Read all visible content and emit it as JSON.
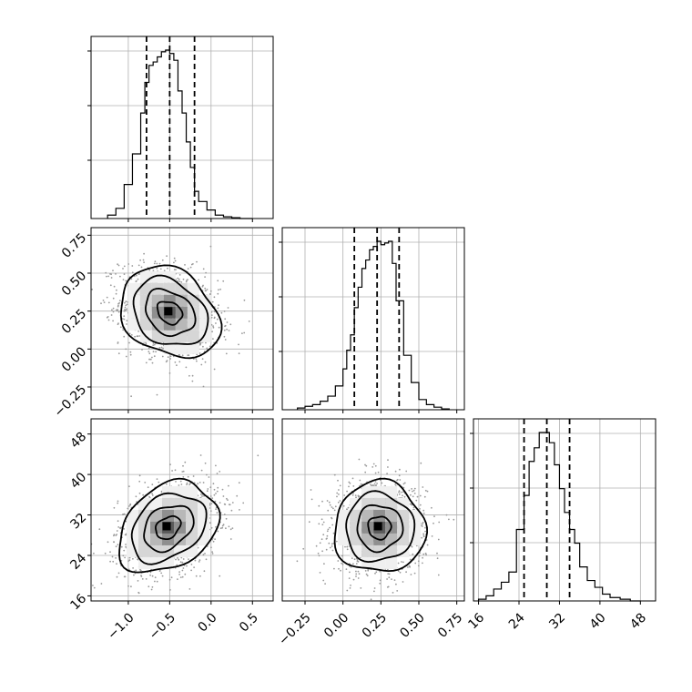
{
  "chart_data": {
    "type": "corner",
    "parameters": [
      {
        "ticks": [
          -1.0,
          -0.5,
          0.0,
          0.5
        ],
        "tick_labels": [
          "−1.0",
          "−0.5",
          "0.0",
          "0.5"
        ],
        "range": [
          -1.45,
          0.75
        ],
        "quantiles": [
          -0.78,
          -0.5,
          -0.2
        ],
        "median": -0.5,
        "sigma": 0.3
      },
      {
        "ticks": [
          -0.25,
          0.0,
          0.25,
          0.5,
          0.75
        ],
        "tick_labels": [
          "−0.25",
          "0.00",
          "0.25",
          "0.50",
          "0.75"
        ],
        "range": [
          -0.4,
          0.8
        ],
        "quantiles": [
          0.075,
          0.225,
          0.37
        ],
        "median": 0.225,
        "sigma": 0.15
      },
      {
        "ticks": [
          16,
          24,
          32,
          40,
          48
        ],
        "tick_labels": [
          "16",
          "24",
          "32",
          "40",
          "48"
        ],
        "range": [
          15,
          51
        ],
        "quantiles": [
          25,
          29.5,
          34
        ],
        "median": 29.5,
        "sigma": 4.5
      }
    ],
    "histograms": [
      {
        "param": 0,
        "edges": [
          -1.25,
          -1.15,
          -1.05,
          -0.95,
          -0.85,
          -0.8,
          -0.75,
          -0.7,
          -0.65,
          -0.6,
          -0.55,
          -0.5,
          -0.45,
          -0.4,
          -0.35,
          -0.3,
          -0.25,
          -0.2,
          -0.15,
          -0.05,
          0.05,
          0.15,
          0.25,
          0.35,
          0.5
        ],
        "counts": [
          0.02,
          0.06,
          0.2,
          0.38,
          0.62,
          0.8,
          0.9,
          0.92,
          0.95,
          0.98,
          0.99,
          0.97,
          0.93,
          0.75,
          0.62,
          0.45,
          0.3,
          0.16,
          0.1,
          0.05,
          0.02,
          0.01,
          0.005,
          0.0
        ]
      },
      {
        "param": 1,
        "edges": [
          -0.3,
          -0.25,
          -0.2,
          -0.15,
          -0.1,
          -0.05,
          0.0,
          0.025,
          0.05,
          0.075,
          0.1,
          0.125,
          0.15,
          0.175,
          0.2,
          0.225,
          0.25,
          0.275,
          0.3,
          0.325,
          0.35,
          0.4,
          0.45,
          0.5,
          0.55,
          0.6,
          0.65,
          0.7
        ],
        "counts": [
          0.01,
          0.02,
          0.03,
          0.05,
          0.08,
          0.14,
          0.24,
          0.35,
          0.44,
          0.6,
          0.72,
          0.83,
          0.88,
          0.94,
          0.96,
          0.99,
          0.97,
          0.98,
          0.99,
          0.86,
          0.64,
          0.32,
          0.16,
          0.06,
          0.03,
          0.015,
          0.005
        ]
      },
      {
        "param": 2,
        "edges": [
          16,
          17.5,
          19,
          20.5,
          22,
          23.5,
          25,
          26,
          27,
          28,
          29,
          30,
          31,
          32,
          33,
          34,
          35,
          36,
          37.5,
          39,
          40.5,
          42,
          44,
          46,
          48
        ],
        "counts": [
          0.01,
          0.03,
          0.07,
          0.11,
          0.17,
          0.42,
          0.62,
          0.82,
          0.9,
          0.99,
          0.99,
          0.93,
          0.8,
          0.66,
          0.52,
          0.42,
          0.34,
          0.2,
          0.12,
          0.08,
          0.04,
          0.02,
          0.01,
          0.0
        ]
      }
    ],
    "panels_2d": [
      {
        "x": 0,
        "y": 1,
        "center": [
          -0.5,
          0.24
        ],
        "correlation": -0.25
      },
      {
        "x": 0,
        "y": 2,
        "center": [
          -0.52,
          29.5
        ],
        "correlation": 0.3
      },
      {
        "x": 1,
        "y": 2,
        "center": [
          0.24,
          29.5
        ],
        "correlation": 0.0
      }
    ],
    "contour_levels": [
      0.5,
      1.0,
      1.5,
      2.0
    ],
    "grid": true
  }
}
